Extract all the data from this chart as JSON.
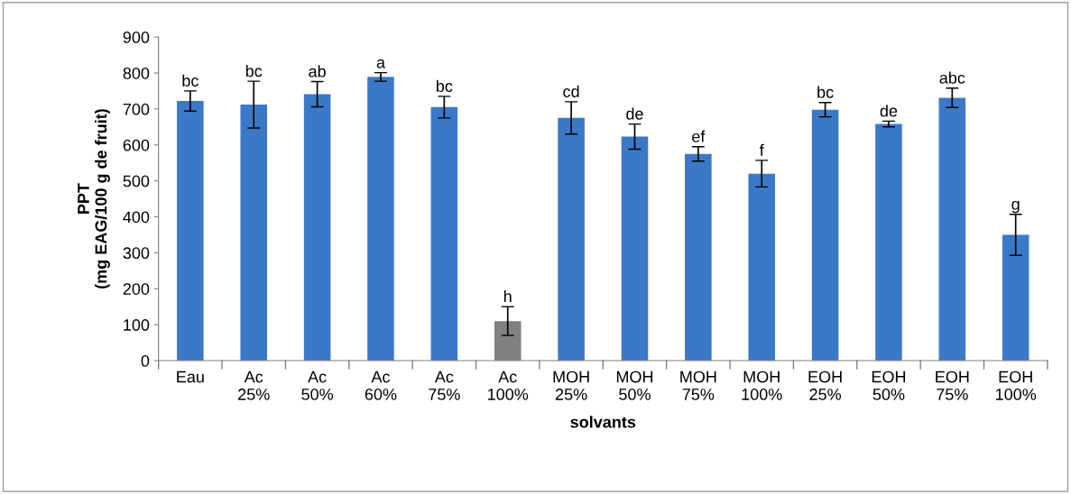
{
  "chart_data": {
    "type": "bar",
    "xlabel": "solvants",
    "ylabel": "PPT\n(mg EAG/100 g de fruit)",
    "categories": [
      "Eau",
      "Ac\n25%",
      "Ac\n50%",
      "Ac\n60%",
      "Ac\n75%",
      "Ac\n100%",
      "MOH\n25%",
      "MOH\n50%",
      "MOH\n75%",
      "MOH\n100%",
      "EOH\n25%",
      "EOH\n50%",
      "EOH\n75%",
      "EOH\n100%"
    ],
    "values": [
      722,
      712,
      741,
      789,
      705,
      110,
      675,
      623,
      575,
      520,
      698,
      658,
      731,
      350
    ],
    "errors": [
      28,
      65,
      35,
      12,
      30,
      40,
      45,
      35,
      20,
      37,
      20,
      8,
      27,
      57
    ],
    "value_labels": [
      "bc",
      "bc",
      "ab",
      "a",
      "bc",
      "h",
      "cd",
      "de",
      "ef",
      "f",
      "bc",
      "de",
      "abc",
      "g"
    ],
    "colors": [
      "#3b78c8",
      "#3b78c8",
      "#3b78c8",
      "#3b78c8",
      "#3b78c8",
      "#808080",
      "#3b78c8",
      "#3b78c8",
      "#3b78c8",
      "#3b78c8",
      "#3b78c8",
      "#3b78c8",
      "#3b78c8",
      "#3b78c8"
    ],
    "ylim": [
      0,
      900
    ],
    "yticks": [
      0,
      100,
      200,
      300,
      400,
      500,
      600,
      700,
      800,
      900
    ],
    "grid": false,
    "legend": false
  }
}
